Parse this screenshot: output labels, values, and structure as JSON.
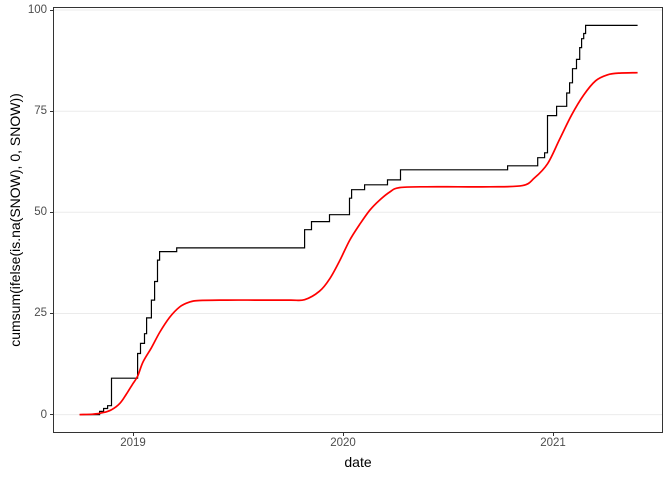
{
  "chart_data": {
    "type": "line",
    "title": "",
    "xlabel": "date",
    "ylabel": "cumsum(ifelse(is.na(SNOW), 0, SNOW))",
    "xlim": [
      2018.626,
      2021.521
    ],
    "ylim": [
      -4.3,
      100.5
    ],
    "grid": "horizontal-major-only",
    "legend": "none",
    "panel_border_color": "#333333",
    "grid_color": "#ebebeb",
    "tick_label_color": "#4d4d4d",
    "axis_title_color": "#000000",
    "x_ticks": [
      {
        "value": 2019,
        "label": "2019"
      },
      {
        "value": 2020,
        "label": "2020"
      },
      {
        "value": 2021,
        "label": "2021"
      }
    ],
    "y_ticks": [
      {
        "value": 0,
        "label": "0"
      },
      {
        "value": 25,
        "label": "25"
      },
      {
        "value": 50,
        "label": "50"
      },
      {
        "value": 75,
        "label": "75"
      },
      {
        "value": 100,
        "label": "100"
      }
    ],
    "series": [
      {
        "name": "cumulative-snow-step",
        "color": "#000000",
        "stroke_width": 1.2,
        "type": "step",
        "points": [
          [
            2018.748,
            0
          ],
          [
            2018.843,
            0.8
          ],
          [
            2018.862,
            1.5
          ],
          [
            2018.881,
            2.2
          ],
          [
            2018.9,
            9.0
          ],
          [
            2019.024,
            15.1
          ],
          [
            2019.038,
            17.6
          ],
          [
            2019.057,
            20.0
          ],
          [
            2019.067,
            23.9
          ],
          [
            2019.09,
            28.3
          ],
          [
            2019.105,
            32.9
          ],
          [
            2019.119,
            38.2
          ],
          [
            2019.129,
            40.3
          ],
          [
            2019.21,
            41.2
          ],
          [
            2019.819,
            45.7
          ],
          [
            2019.852,
            47.7
          ],
          [
            2019.938,
            49.4
          ],
          [
            2020.033,
            53.5
          ],
          [
            2020.043,
            55.6
          ],
          [
            2020.105,
            56.8
          ],
          [
            2020.214,
            58.0
          ],
          [
            2020.276,
            60.5
          ],
          [
            2020.786,
            61.5
          ],
          [
            2020.929,
            63.5
          ],
          [
            2020.962,
            64.7
          ],
          [
            2020.976,
            73.9
          ],
          [
            2021.019,
            76.2
          ],
          [
            2021.067,
            79.5
          ],
          [
            2021.081,
            82.0
          ],
          [
            2021.095,
            85.5
          ],
          [
            2021.114,
            87.8
          ],
          [
            2021.129,
            90.7
          ],
          [
            2021.138,
            92.9
          ],
          [
            2021.148,
            94.2
          ],
          [
            2021.157,
            96.2
          ],
          [
            2021.405,
            96.2
          ]
        ]
      },
      {
        "name": "smoothed-trend",
        "color": "#ff0000",
        "stroke_width": 1.7,
        "type": "smooth",
        "points": [
          [
            2018.748,
            0
          ],
          [
            2018.81,
            0.1
          ],
          [
            2018.86,
            0.5
          ],
          [
            2018.9,
            1.2
          ],
          [
            2018.94,
            2.8
          ],
          [
            2018.97,
            5.0
          ],
          [
            2019.0,
            7.5
          ],
          [
            2019.024,
            9.5
          ],
          [
            2019.05,
            13.0
          ],
          [
            2019.09,
            16.5
          ],
          [
            2019.129,
            20.3
          ],
          [
            2019.176,
            24.0
          ],
          [
            2019.224,
            26.6
          ],
          [
            2019.271,
            27.8
          ],
          [
            2019.319,
            28.2
          ],
          [
            2019.45,
            28.3
          ],
          [
            2019.6,
            28.3
          ],
          [
            2019.75,
            28.3
          ],
          [
            2019.819,
            28.4
          ],
          [
            2019.89,
            30.5
          ],
          [
            2019.938,
            33.5
          ],
          [
            2019.986,
            38.0
          ],
          [
            2020.033,
            43.0
          ],
          [
            2020.081,
            47.0
          ],
          [
            2020.129,
            50.5
          ],
          [
            2020.176,
            53.0
          ],
          [
            2020.224,
            55.0
          ],
          [
            2020.271,
            56.1
          ],
          [
            2020.4,
            56.3
          ],
          [
            2020.55,
            56.3
          ],
          [
            2020.7,
            56.3
          ],
          [
            2020.857,
            56.6
          ],
          [
            2020.914,
            58.5
          ],
          [
            2020.976,
            62.0
          ],
          [
            2021.033,
            68.0
          ],
          [
            2021.09,
            74.0
          ],
          [
            2021.148,
            79.0
          ],
          [
            2021.205,
            82.5
          ],
          [
            2021.262,
            84.0
          ],
          [
            2021.319,
            84.4
          ],
          [
            2021.405,
            84.5
          ]
        ]
      }
    ]
  }
}
